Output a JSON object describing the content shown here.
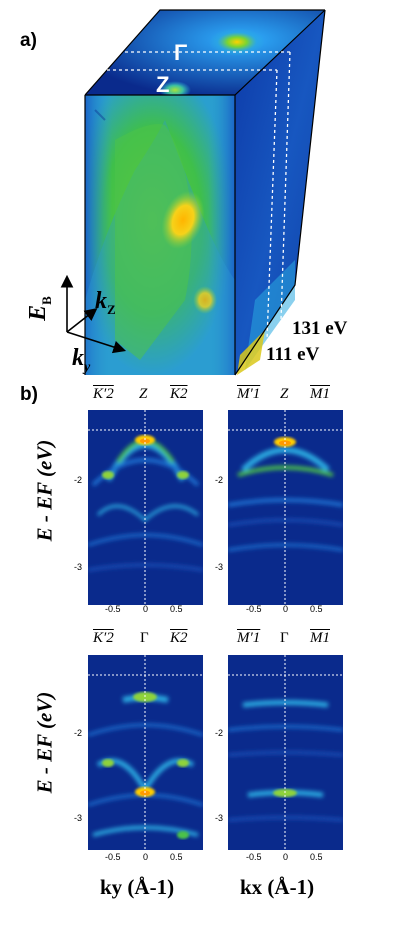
{
  "panel_a": {
    "label": "a)",
    "point_gamma": "Γ",
    "point_z": "Z",
    "energy_top": "131 eV",
    "energy_bottom": "111 eV",
    "axis_eb_main": "E",
    "axis_eb_sub": "B",
    "axis_kz_main": "k",
    "axis_kz_sub": "Z",
    "axis_ky_main": "k",
    "axis_ky_sub": "y"
  },
  "panel_b": {
    "label": "b)",
    "row1": {
      "left_labels": [
        "K′2",
        "Z",
        "K2"
      ],
      "right_labels": [
        "M′1",
        "Z",
        "M1"
      ]
    },
    "row2": {
      "left_labels": [
        "K′2",
        "Γ",
        "K2"
      ],
      "right_labels": [
        "M′1",
        "Γ",
        "M1"
      ]
    },
    "ylabel": "E - EF (eV)",
    "y_ticks": [
      "-2",
      "-3"
    ],
    "x_ticks": [
      "-0.5",
      "0",
      "0.5"
    ],
    "xlabel_left": "ky (Å-1)",
    "xlabel_right": "kx (Å-1)"
  },
  "colors": {
    "bg_blue": "#0a2a8c",
    "band_cyan": "#2aa9e0",
    "band_green": "#4cc24a",
    "band_yellow": "#ffcc00"
  }
}
